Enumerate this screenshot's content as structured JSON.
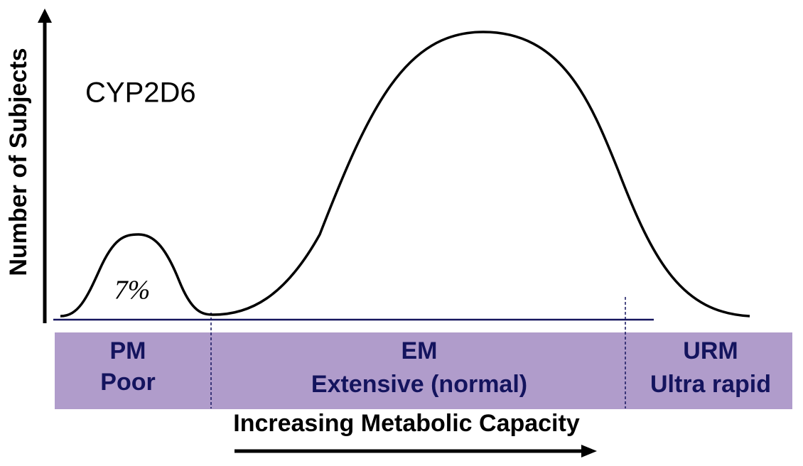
{
  "title": "CYP2D6",
  "y_axis_label": "Number of Subjects",
  "x_axis_label": "Increasing Metabolic Capacity",
  "peak_label": "7%",
  "groups": [
    {
      "code": "PM",
      "name": "Poor"
    },
    {
      "code": "EM",
      "name": "Extensive (normal)"
    },
    {
      "code": "URM",
      "name": "Ultra rapid"
    }
  ]
}
